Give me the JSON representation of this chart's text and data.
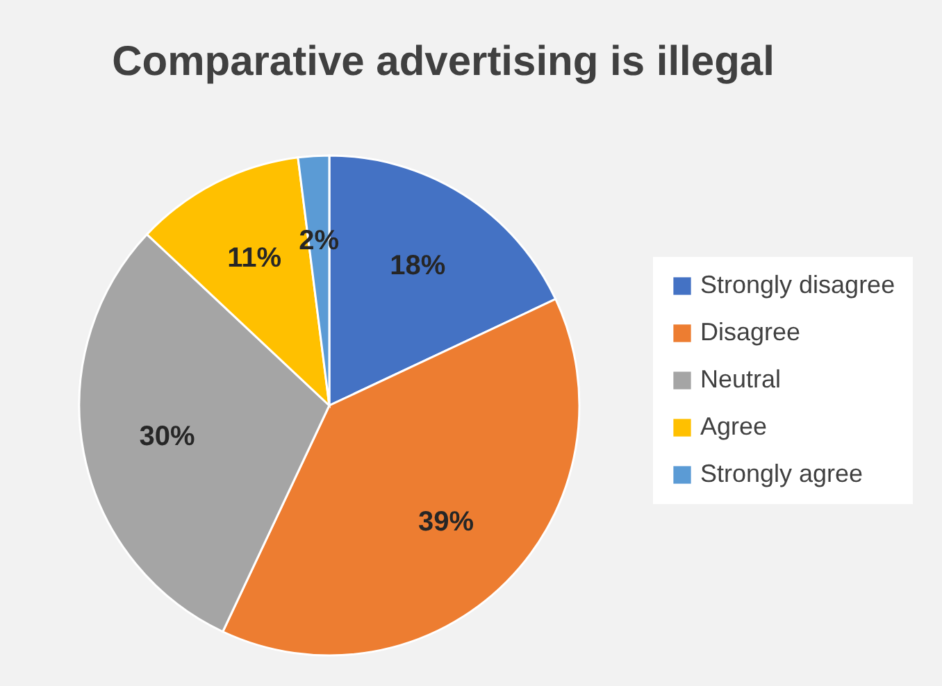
{
  "chart_data": {
    "type": "pie",
    "title": "Comparative advertising is illegal",
    "categories": [
      "Strongly disagree",
      "Disagree",
      "Neutral",
      "Agree",
      "Strongly agree"
    ],
    "values": [
      18,
      39,
      30,
      11,
      2
    ],
    "colors": [
      "#4472c4",
      "#ed7d31",
      "#a5a5a5",
      "#ffc000",
      "#5b9bd5"
    ],
    "value_labels": [
      "18%",
      "39%",
      "30%",
      "11%",
      "2%"
    ],
    "legend": "right"
  }
}
